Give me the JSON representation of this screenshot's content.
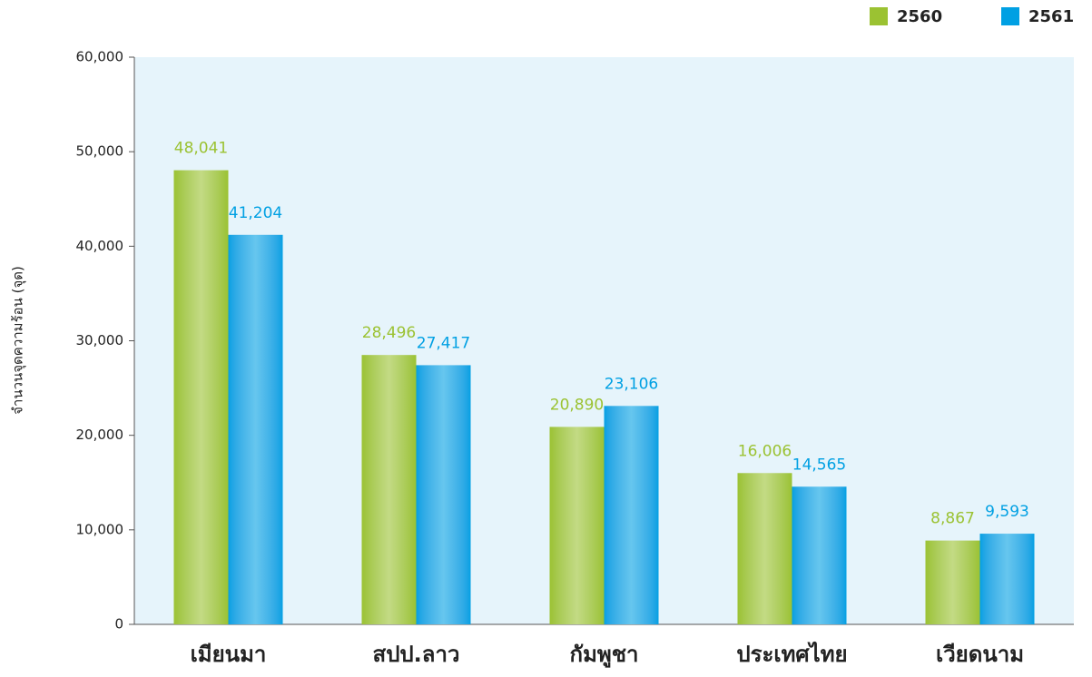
{
  "chart_data": {
    "type": "bar",
    "y_label": "จำนวนจุดความร้อน (จุด)",
    "categories": [
      "เมียนมา",
      "สปป.ลาว",
      "กัมพูชา",
      "ประเทศไทย",
      "เวียดนาม"
    ],
    "series": [
      {
        "name": "2560",
        "color": "#9bc232",
        "values": [
          48041,
          28496,
          20890,
          16006,
          8867
        ],
        "value_labels": [
          "48,041",
          "28,496",
          "20,890",
          "16,006",
          "8,867"
        ]
      },
      {
        "name": "2561",
        "color": "#00a0e3",
        "values": [
          41204,
          27417,
          23106,
          14565,
          9593
        ],
        "value_labels": [
          "41,204",
          "27,417",
          "23,106",
          "14,565",
          "9,593"
        ]
      }
    ],
    "ylim": [
      0,
      60000
    ],
    "yticks": [
      0,
      {
        "value": 10000,
        "label": "10,000"
      },
      {
        "value": 20000,
        "label": "20,000"
      },
      {
        "value": 30000,
        "label": "30,000"
      },
      {
        "value": 40000,
        "label": "40,000"
      },
      {
        "value": 50000,
        "label": "50,000"
      },
      {
        "value": 60000,
        "label": "60,000"
      }
    ],
    "grid": false,
    "legend": "top-right"
  }
}
